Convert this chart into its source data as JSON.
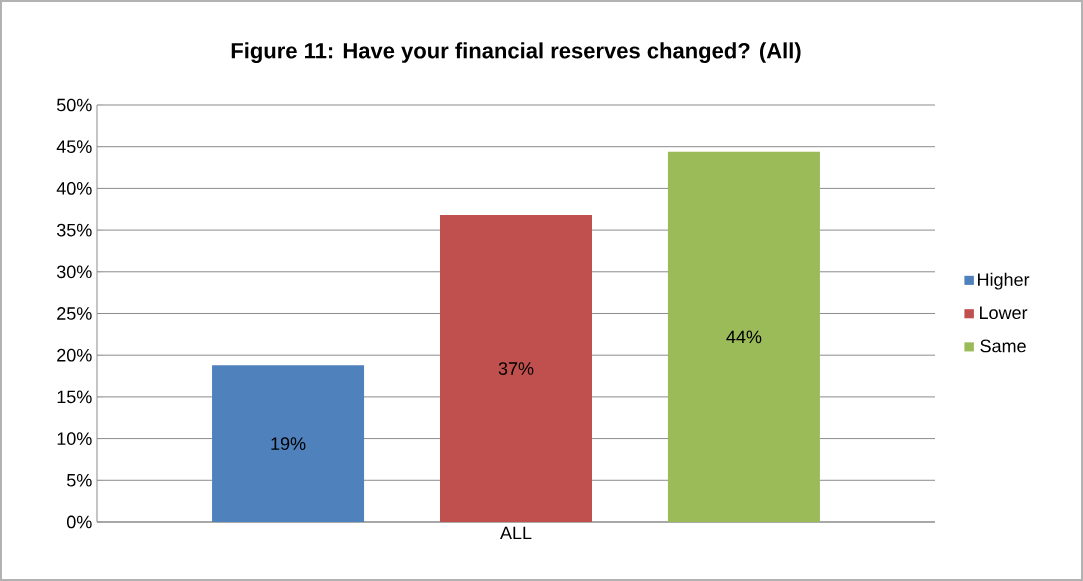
{
  "chart_data": {
    "type": "bar",
    "title": "Figure 11: Have your financial reserves changed? (All)",
    "categories": [
      "ALL"
    ],
    "series": [
      {
        "name": "Higher",
        "color": "#4f81bd",
        "values": [
          18.8
        ],
        "value_labels": [
          "19%"
        ]
      },
      {
        "name": "Lower",
        "color": "#c0504d",
        "values": [
          36.8
        ],
        "value_labels": [
          "37%"
        ]
      },
      {
        "name": "Same",
        "color": "#9bbb59",
        "values": [
          44.4
        ],
        "value_labels": [
          "44%"
        ]
      }
    ],
    "ylim": [
      0,
      50
    ],
    "yticks": [
      {
        "value": 0,
        "label": "0%"
      },
      {
        "value": 5,
        "label": "5%"
      },
      {
        "value": 10,
        "label": "10%"
      },
      {
        "value": 15,
        "label": "15%"
      },
      {
        "value": 20,
        "label": "20%"
      },
      {
        "value": 25,
        "label": "25%"
      },
      {
        "value": 30,
        "label": "30%"
      },
      {
        "value": 35,
        "label": "35%"
      },
      {
        "value": 40,
        "label": "40%"
      },
      {
        "value": 45,
        "label": "45%"
      },
      {
        "value": 50,
        "label": "50%"
      }
    ],
    "grid": "y",
    "legend": "right"
  }
}
